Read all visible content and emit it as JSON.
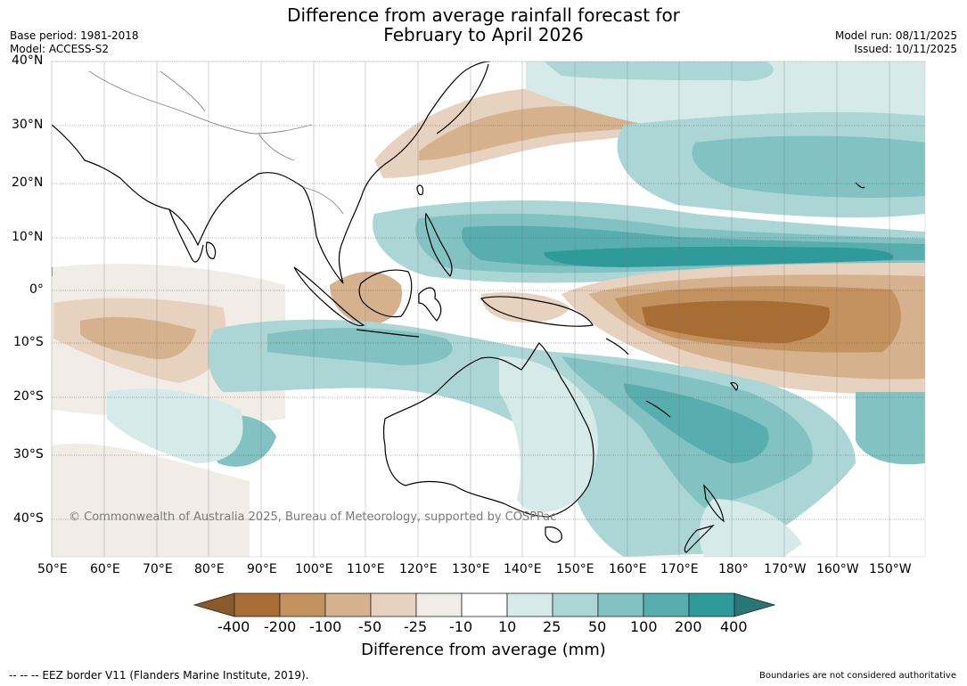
{
  "title_line1": "Difference from average rainfall forecast for",
  "title_line2": "February to April 2026",
  "base_period": "Base period: 1981-2018",
  "model": "Model: ACCESS-S2",
  "model_run": "Model run: 08/11/2025",
  "issued": "Issued: 10/11/2025",
  "copyright": "© Commonwealth of Australia 2025, Bureau of Meteorology, supported by COSPPac",
  "lat_labels": [
    "40°N",
    "30°N",
    "20°N",
    "10°N",
    "0°",
    "10°S",
    "20°S",
    "30°S",
    "40°S"
  ],
  "lon_labels": [
    "50°E",
    "60°E",
    "70°E",
    "80°E",
    "90°E",
    "100°E",
    "110°E",
    "120°E",
    "130°E",
    "140°E",
    "150°E",
    "160°E",
    "170°E",
    "180°",
    "170°W",
    "160°W",
    "150°W"
  ],
  "colorbar": {
    "ticks": [
      "-400",
      "-200",
      "-100",
      "-50",
      "-25",
      "-10",
      "10",
      "25",
      "50",
      "100",
      "200",
      "400"
    ],
    "colors": [
      "#a86c35",
      "#c4925f",
      "#d5b18e",
      "#e6d2bf",
      "#f2ece6",
      "#ffffff",
      "#d6eaea",
      "#acd6d6",
      "#82c2c2",
      "#58aeae",
      "#2e9a9a"
    ],
    "end_low": "#8b5a2b",
    "end_high": "#2a7575",
    "title": "Difference from average (mm)"
  },
  "footer_left": "--  --  -- EEZ border V11 (Flanders Marine Institute, 2019).",
  "footer_right": "Boundaries are not considered authoritative"
}
